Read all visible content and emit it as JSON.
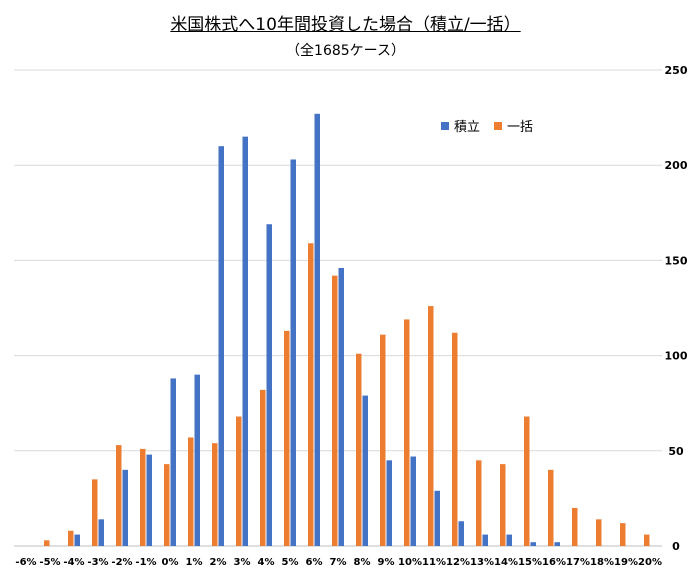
{
  "chart_data": {
    "type": "bar",
    "title": "米国株式へ10年間投資した場合（積立/一括）",
    "subtitle": "（全1685ケース）",
    "categories": [
      "-6%",
      "-5%",
      "-4%",
      "-3%",
      "-2%",
      "-1%",
      "0%",
      "1%",
      "2%",
      "3%",
      "4%",
      "5%",
      "6%",
      "7%",
      "8%",
      "9%",
      "10%",
      "11%",
      "12%",
      "13%",
      "14%",
      "15%",
      "16%",
      "17%",
      "18%",
      "19%",
      "20%"
    ],
    "series": [
      {
        "name": "積立",
        "color": "#4472C4",
        "values": [
          0,
          0,
          6,
          14,
          40,
          48,
          88,
          90,
          210,
          215,
          169,
          203,
          227,
          146,
          79,
          45,
          47,
          29,
          13,
          6,
          6,
          2,
          2,
          0,
          0,
          0,
          0
        ]
      },
      {
        "name": "一括",
        "color": "#ED7D31",
        "values": [
          0,
          3,
          8,
          35,
          53,
          51,
          43,
          57,
          54,
          68,
          82,
          113,
          159,
          142,
          101,
          111,
          119,
          126,
          112,
          45,
          43,
          68,
          40,
          20,
          14,
          12,
          6
        ]
      }
    ],
    "ylim": [
      0,
      250
    ],
    "yticks": [
      0,
      50,
      100,
      150,
      200,
      250
    ],
    "y_axis_side": "right",
    "grid": true,
    "legend_position": "top-right"
  }
}
